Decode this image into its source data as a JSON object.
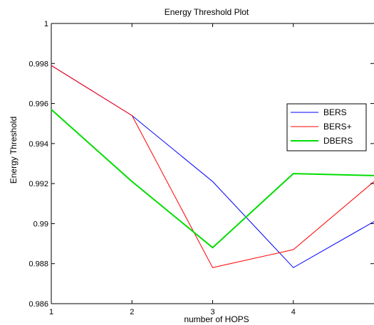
{
  "chart_data": {
    "type": "line",
    "title": "Energy Threshold Plot",
    "xlabel": "number of HOPS",
    "ylabel": "Energy Threshold",
    "x": [
      1,
      2,
      3,
      4,
      5
    ],
    "xlim": [
      1,
      5
    ],
    "ylim": [
      0.986,
      1.0
    ],
    "xticks": [
      "1",
      "2",
      "3",
      "4"
    ],
    "yticks": [
      "0.986",
      "0.988",
      "0.99",
      "0.992",
      "0.994",
      "0.996",
      "0.998",
      "1"
    ],
    "ytick_values": [
      0.986,
      0.988,
      0.99,
      0.992,
      0.994,
      0.996,
      0.998,
      1.0
    ],
    "grid": false,
    "legend_position": "right",
    "series": [
      {
        "name": "BERS",
        "color": "#0000ff",
        "line_width": 1,
        "values": [
          0.9979,
          0.9954,
          0.9921,
          0.9878,
          0.9901
        ]
      },
      {
        "name": "BERS+",
        "color": "#ff0000",
        "line_width": 1,
        "values": [
          0.9979,
          0.9954,
          0.9878,
          0.9887,
          0.9921
        ]
      },
      {
        "name": "DBERS",
        "color": "#00dd00",
        "line_width": 2,
        "values": [
          0.9957,
          0.9921,
          0.9888,
          0.9925,
          0.9924
        ]
      }
    ]
  }
}
